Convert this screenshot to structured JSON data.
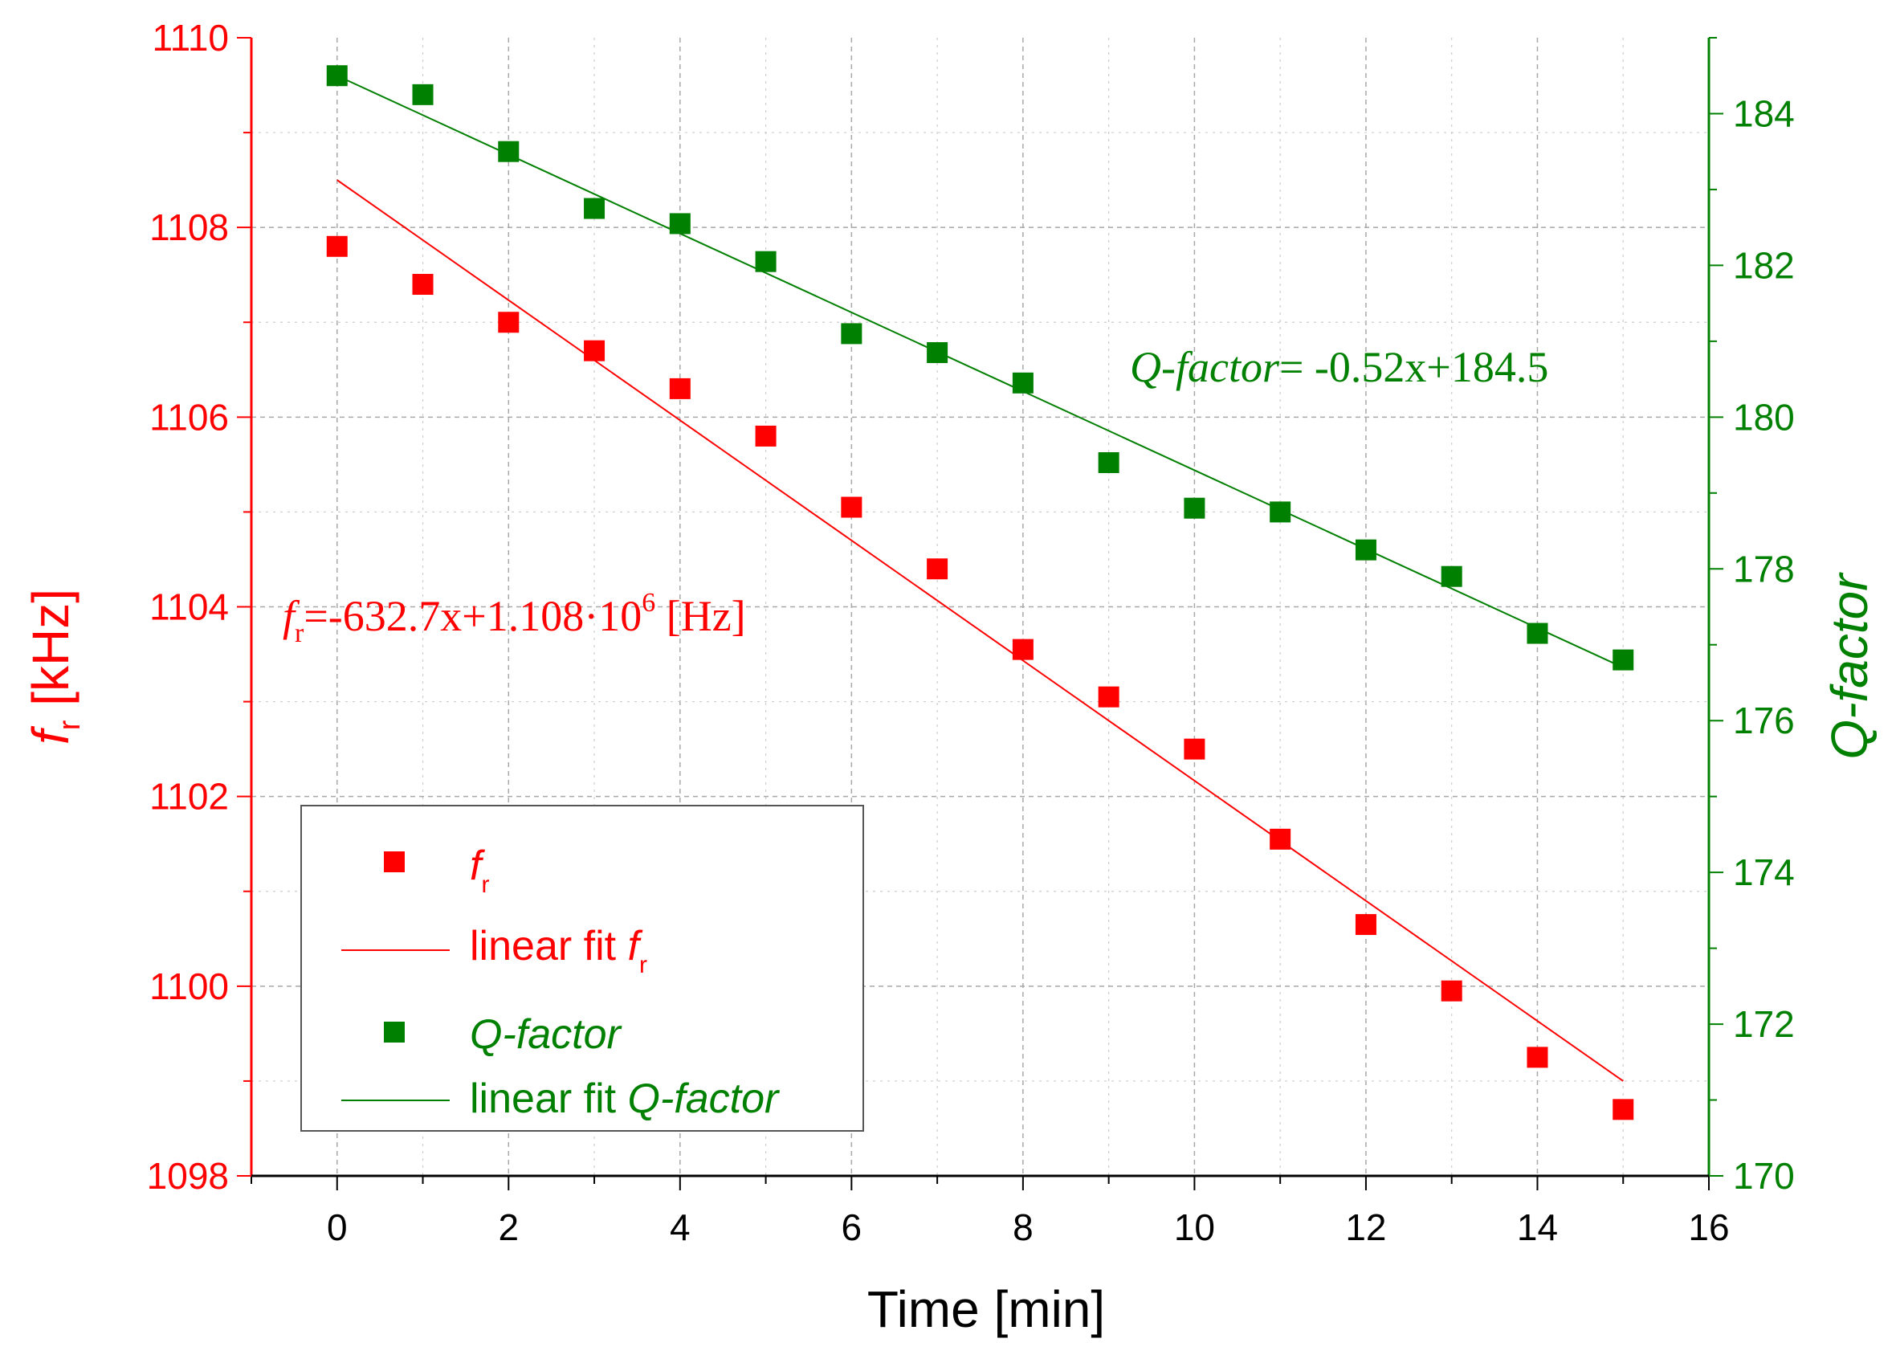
{
  "colors": {
    "fr": "#ff0000",
    "q": "#008000",
    "axis": "#000000",
    "grid": "#b8b8b8"
  },
  "chart_data": {
    "type": "scatter",
    "x": {
      "label": "Time [min]",
      "range": [
        -1,
        16
      ],
      "ticks": [
        0,
        2,
        4,
        6,
        8,
        10,
        12,
        14,
        16
      ],
      "tick_labels": [
        "0",
        "2",
        "4",
        "6",
        "8",
        "10",
        "12",
        "14",
        "16"
      ]
    },
    "y_left": {
      "label_main": "f",
      "label_sub": "r",
      "label_unit": " [kHz]",
      "range": [
        1098,
        1110
      ],
      "ticks": [
        1098,
        1100,
        1102,
        1104,
        1106,
        1108,
        1110
      ],
      "tick_labels": [
        "1098",
        "1100",
        "1102",
        "1104",
        "1106",
        "1108",
        "1110"
      ]
    },
    "y_right": {
      "label": "Q-factor",
      "range": [
        170,
        185
      ],
      "ticks": [
        170,
        172,
        174,
        176,
        178,
        180,
        182,
        184
      ],
      "tick_labels": [
        "170",
        "172",
        "174",
        "176",
        "178",
        "180",
        "182",
        "184"
      ]
    },
    "series": [
      {
        "name": "fr",
        "axis": "left",
        "kind": "points",
        "x": [
          0,
          1,
          2,
          3,
          4,
          5,
          6,
          7,
          8,
          9,
          10,
          11,
          12,
          13,
          14,
          15
        ],
        "y": [
          1107.8,
          1107.4,
          1107.0,
          1106.7,
          1106.3,
          1105.8,
          1105.05,
          1104.4,
          1103.55,
          1103.05,
          1102.5,
          1101.55,
          1100.65,
          1099.95,
          1099.25,
          1098.7
        ]
      },
      {
        "name": "linear fit fr",
        "axis": "left",
        "kind": "line",
        "x": [
          0,
          15
        ],
        "y": [
          1108.5,
          1099.0
        ]
      },
      {
        "name": "Q-factor",
        "axis": "right",
        "kind": "points",
        "x": [
          0,
          1,
          2,
          3,
          4,
          5,
          6,
          7,
          8,
          9,
          10,
          11,
          12,
          13,
          14,
          15
        ],
        "y": [
          184.5,
          184.25,
          183.5,
          182.75,
          182.55,
          182.05,
          181.1,
          180.85,
          180.45,
          179.4,
          178.8,
          178.75,
          178.25,
          177.9,
          177.15,
          176.8
        ]
      },
      {
        "name": "linear fit Q-factor",
        "axis": "right",
        "kind": "line",
        "x": [
          0,
          15
        ],
        "y": [
          184.5,
          176.7
        ]
      }
    ],
    "annotations": {
      "q_eq_italic": "Q-factor",
      "q_eq_rest": "= -0.52x+184.5",
      "fr_eq_f": "f",
      "fr_eq_sub": "r",
      "fr_eq_body": "=-632.7x+1.108·10",
      "fr_eq_sup": "6",
      "fr_eq_unit": " [Hz]"
    },
    "legend": {
      "position": "bottom-left",
      "items": [
        {
          "label_plain": "",
          "label_italic": "f",
          "label_sub": "r",
          "marker": "square",
          "color_key": "fr"
        },
        {
          "label_plain": "linear fit ",
          "label_italic": "f",
          "label_sub": "r",
          "marker": "line",
          "color_key": "fr"
        },
        {
          "label_plain": "",
          "label_italic": "Q-factor",
          "label_sub": "",
          "marker": "square",
          "color_key": "q"
        },
        {
          "label_plain": "linear fit ",
          "label_italic": "Q-factor",
          "label_sub": "",
          "marker": "line",
          "color_key": "q"
        }
      ]
    }
  }
}
